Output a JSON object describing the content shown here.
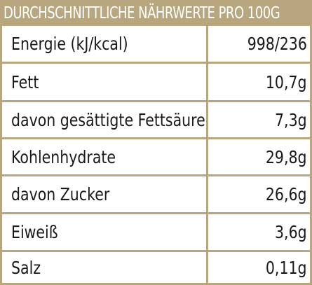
{
  "table": {
    "title": "DURCHSCHNITTLICHE NÄHRWERTE PRO 100G",
    "rows": [
      {
        "label": "Energie (kJ/kcal)",
        "value": "998/236"
      },
      {
        "label": "Fett",
        "value": "10,7g"
      },
      {
        "label": "davon gesättigte Fettsäuren",
        "value": "7,3g"
      },
      {
        "label": "Kohlenhydrate",
        "value": "29,8g"
      },
      {
        "label": "davon Zucker",
        "value": "26,6g"
      },
      {
        "label": "Eiweiß",
        "value": "3,6g"
      },
      {
        "label": "Salz",
        "value": "0,11g"
      }
    ],
    "colors": {
      "accent": "#b7a67e",
      "text": "#1a1a1a",
      "header_text": "#ffffff"
    }
  }
}
